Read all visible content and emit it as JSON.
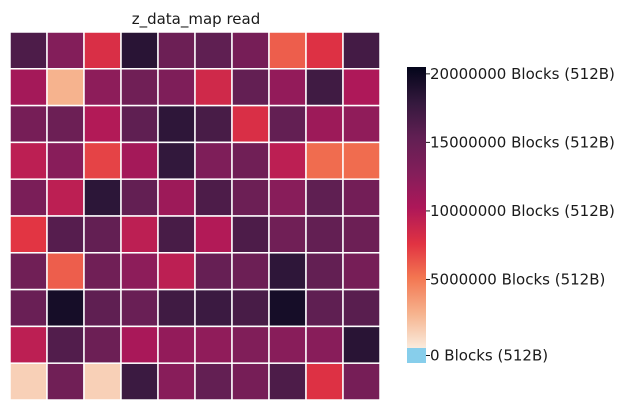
{
  "chart_data": {
    "type": "heatmap",
    "title": "z_data_map read",
    "rows": 10,
    "cols": 10,
    "values": [
      [
        16500000,
        12800000,
        8000000,
        18500000,
        14500000,
        15500000,
        13800000,
        6000000,
        7800000,
        17000000
      ],
      [
        10800000,
        2500000,
        12200000,
        14200000,
        13200000,
        8500000,
        15200000,
        11800000,
        17200000,
        10200000
      ],
      [
        13800000,
        14500000,
        10000000,
        15500000,
        18200000,
        16800000,
        8000000,
        15200000,
        11200000,
        12000000
      ],
      [
        9500000,
        12500000,
        7000000,
        10800000,
        18000000,
        13200000,
        14200000,
        9500000,
        5500000,
        5500000
      ],
      [
        13500000,
        9500000,
        18300000,
        15200000,
        11200000,
        16500000,
        14500000,
        12500000,
        15500000,
        14000000
      ],
      [
        7500000,
        16000000,
        15200000,
        9500000,
        16800000,
        10000000,
        16500000,
        14200000,
        15200000,
        14500000
      ],
      [
        14200000,
        6000000,
        14200000,
        12200000,
        9500000,
        15000000,
        14500000,
        18200000,
        15200000,
        13800000
      ],
      [
        14800000,
        19500000,
        15500000,
        14800000,
        17200000,
        17500000,
        16800000,
        19500000,
        15500000,
        15800000
      ],
      [
        9500000,
        16200000,
        14500000,
        10500000,
        11800000,
        12000000,
        13000000,
        12500000,
        12500000,
        18500000
      ],
      [
        1200000,
        14200000,
        1200000,
        17500000,
        12500000,
        15200000,
        13800000,
        16500000,
        7800000,
        13800000
      ]
    ],
    "vmin": 0,
    "vmax": 20500000,
    "colorbar": {
      "ticks": [
        {
          "value": 0,
          "label": "0 Blocks (512B)"
        },
        {
          "value": 5000000,
          "label": "5000000 Blocks (512B)"
        },
        {
          "value": 10000000,
          "label": "10000000 Blocks (512B)"
        },
        {
          "value": 15000000,
          "label": "15000000 Blocks (512B)"
        },
        {
          "value": 20000000,
          "label": "20000000 Blocks (512B)"
        }
      ],
      "under_color": "#87ceeb"
    },
    "colormap": "rocket_r",
    "grid": true,
    "legend_placement": "right"
  }
}
